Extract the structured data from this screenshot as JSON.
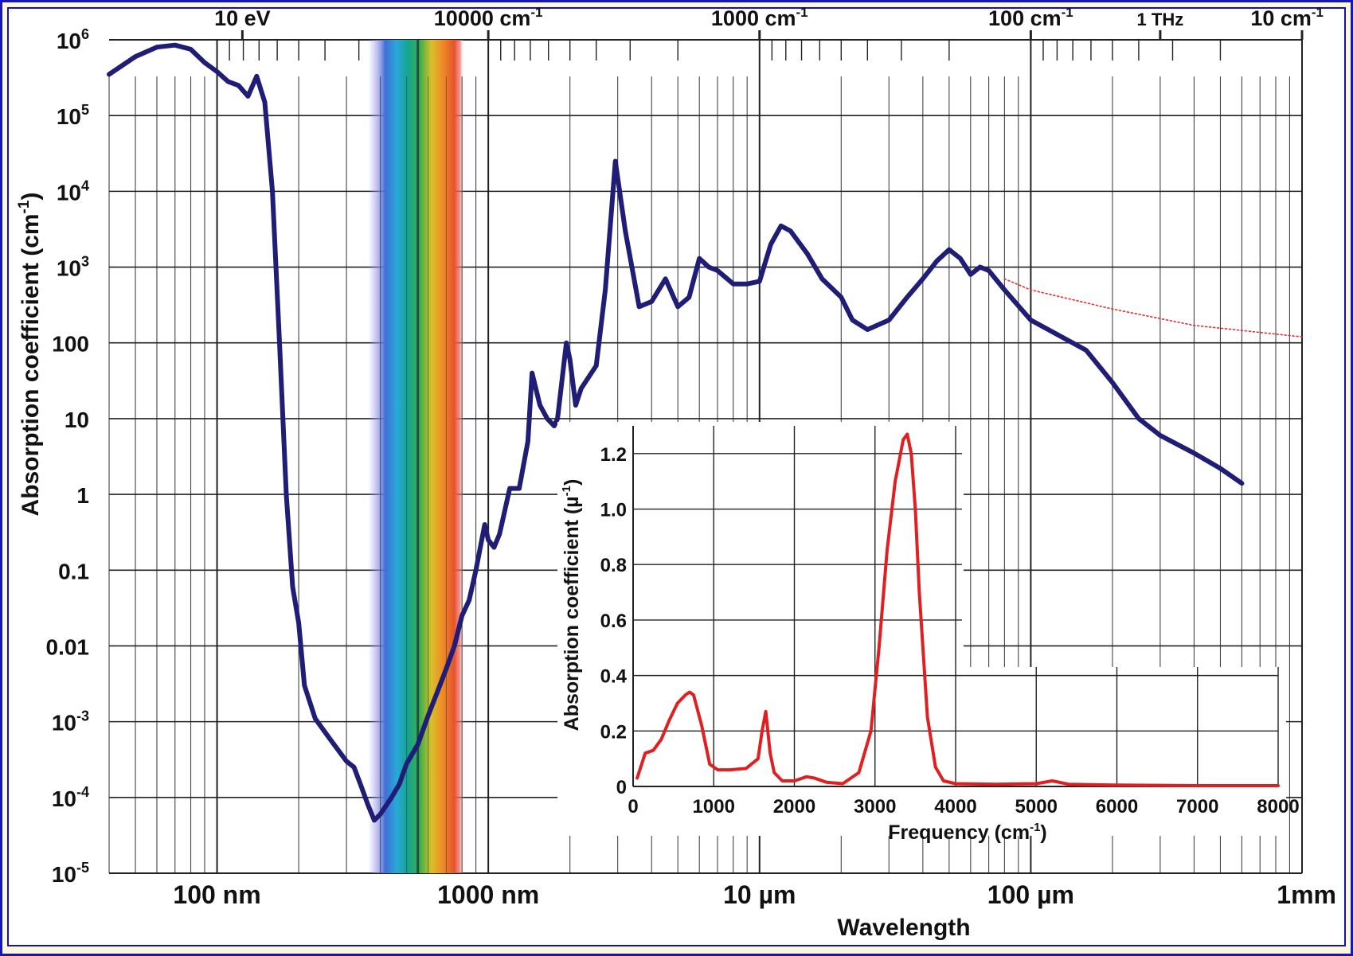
{
  "frame": {
    "border_color": "#1518b4",
    "background": "#fdf8dd"
  },
  "chart_data": [
    {
      "type": "line",
      "scale": "log-log",
      "title": "",
      "xlabel": "Wavelength",
      "ylabel": "Absorption coefficient (cm",
      "ylabel_sup": "-1",
      "ylabel_close": ")",
      "xlim_m": [
        4e-08,
        0.001
      ],
      "ylim": [
        1e-05,
        1000000.0
      ],
      "grid": true,
      "x_tick_labels": [
        {
          "label": "100 nm",
          "value_m": 1e-07
        },
        {
          "label": "1000 nm",
          "value_m": 1e-06
        },
        {
          "label": "10 µm",
          "value_m": 1e-05
        },
        {
          "label": "100 µm",
          "value_m": 0.0001
        },
        {
          "label": "1mm",
          "value_m": 0.001
        }
      ],
      "top_axis_labels": [
        {
          "label": "10 eV",
          "value_m": 1.24e-07
        },
        {
          "label": "10000 cm",
          "sup": "-1",
          "value_m": 1e-06
        },
        {
          "label": "1000 cm",
          "sup": "-1",
          "value_m": 1e-05
        },
        {
          "label": "100 cm",
          "sup": "-1",
          "value_m": 0.0001
        },
        {
          "label": "1 THz",
          "value_m": 0.0003
        },
        {
          "label": "10 cm",
          "sup": "-1",
          "value_m": 0.001
        }
      ],
      "y_tick_labels": [
        {
          "base": "10",
          "sup": "6",
          "value": 1000000.0
        },
        {
          "base": "10",
          "sup": "5",
          "value": 100000.0
        },
        {
          "base": "10",
          "sup": "4",
          "value": 10000.0
        },
        {
          "base": "10",
          "sup": "3",
          "value": 1000.0
        },
        {
          "base": "100",
          "sup": "",
          "value": 100
        },
        {
          "base": "10",
          "sup": "",
          "value": 10
        },
        {
          "base": "1",
          "sup": "",
          "value": 1
        },
        {
          "base": "0.1",
          "sup": "",
          "value": 0.1
        },
        {
          "base": "0.01",
          "sup": "",
          "value": 0.01
        },
        {
          "base": "10",
          "sup": "-3",
          "value": 0.001
        },
        {
          "base": "10",
          "sup": "-4",
          "value": 0.0001
        },
        {
          "base": "10",
          "sup": "-5",
          "value": 1e-05
        }
      ],
      "visible_band_m": [
        3.8e-07,
        7.5e-07
      ],
      "series": [
        {
          "name": "water absorption",
          "color": "#1f1d75",
          "points": [
            [
              4e-08,
              350000.0
            ],
            [
              5e-08,
              600000.0
            ],
            [
              6e-08,
              800000.0
            ],
            [
              7e-08,
              850000.0
            ],
            [
              8e-08,
              750000.0
            ],
            [
              9e-08,
              500000.0
            ],
            [
              1e-07,
              380000.0
            ],
            [
              1.1e-07,
              280000.0
            ],
            [
              1.2e-07,
              250000.0
            ],
            [
              1.3e-07,
              180000.0
            ],
            [
              1.4e-07,
              330000.0
            ],
            [
              1.5e-07,
              150000.0
            ],
            [
              1.6e-07,
              10000.0
            ],
            [
              1.7e-07,
              100
            ],
            [
              1.8e-07,
              1
            ],
            [
              1.9e-07,
              0.06
            ],
            [
              2e-07,
              0.02
            ],
            [
              2.1e-07,
              0.003
            ],
            [
              2.3e-07,
              0.0011
            ],
            [
              2.6e-07,
              0.0006
            ],
            [
              3e-07,
              0.0003
            ],
            [
              3.2e-07,
              0.00025
            ],
            [
              3.4e-07,
              0.00014
            ],
            [
              3.6e-07,
              8e-05
            ],
            [
              3.8e-07,
              5e-05
            ],
            [
              4e-07,
              6e-05
            ],
            [
              4.4e-07,
              0.0001
            ],
            [
              4.7e-07,
              0.00015
            ],
            [
              5e-07,
              0.00028
            ],
            [
              5.5e-07,
              0.0005
            ],
            [
              6e-07,
              0.0012
            ],
            [
              6.5e-07,
              0.0025
            ],
            [
              7e-07,
              0.005
            ],
            [
              7.5e-07,
              0.01
            ],
            [
              8e-07,
              0.025
            ],
            [
              8.5e-07,
              0.04
            ],
            [
              9e-07,
              0.1
            ],
            [
              9.7e-07,
              0.4
            ],
            [
              1e-06,
              0.25
            ],
            [
              1.05e-06,
              0.2
            ],
            [
              1.1e-06,
              0.3
            ],
            [
              1.2e-06,
              1.2
            ],
            [
              1.3e-06,
              1.2
            ],
            [
              1.4e-06,
              5
            ],
            [
              1.45e-06,
              40
            ],
            [
              1.55e-06,
              15
            ],
            [
              1.65e-06,
              10
            ],
            [
              1.75e-06,
              8
            ],
            [
              1.8e-06,
              10
            ],
            [
              1.94e-06,
              100
            ],
            [
              2e-06,
              60
            ],
            [
              2.1e-06,
              15
            ],
            [
              2.2e-06,
              25
            ],
            [
              2.5e-06,
              50
            ],
            [
              2.7e-06,
              500
            ],
            [
              2.94e-06,
              25000.0
            ],
            [
              3.2e-06,
              3000.0
            ],
            [
              3.6e-06,
              300
            ],
            [
              4e-06,
              350
            ],
            [
              4.5e-06,
              700
            ],
            [
              5e-06,
              300
            ],
            [
              5.5e-06,
              400
            ],
            [
              6e-06,
              1300
            ],
            [
              6.5e-06,
              1000
            ],
            [
              7e-06,
              900
            ],
            [
              8e-06,
              600
            ],
            [
              9e-06,
              600
            ],
            [
              1e-05,
              650
            ],
            [
              1.1e-05,
              2000
            ],
            [
              1.2e-05,
              3500
            ],
            [
              1.3e-05,
              3000
            ],
            [
              1.5e-05,
              1500
            ],
            [
              1.7e-05,
              700
            ],
            [
              2e-05,
              400
            ],
            [
              2.2e-05,
              200
            ],
            [
              2.5e-05,
              150
            ],
            [
              3e-05,
              200
            ],
            [
              3.5e-05,
              400
            ],
            [
              4e-05,
              700
            ],
            [
              4.5e-05,
              1200
            ],
            [
              5e-05,
              1700
            ],
            [
              5.5e-05,
              1300
            ],
            [
              6e-05,
              800
            ],
            [
              6.5e-05,
              1000
            ],
            [
              7e-05,
              900
            ],
            [
              8e-05,
              500
            ],
            [
              0.0001,
              200
            ],
            [
              0.00013,
              120
            ],
            [
              0.00016,
              80
            ],
            [
              0.0002,
              30
            ],
            [
              0.00025,
              10
            ],
            [
              0.0003,
              6
            ],
            [
              0.0004,
              3.5
            ],
            [
              0.0005,
              2.2
            ],
            [
              0.0006,
              1.4
            ]
          ]
        },
        {
          "name": "dotted extension",
          "color": "#e0312e",
          "style": "dotted",
          "points": [
            [
              8e-05,
              700
            ],
            [
              0.0001,
              500
            ],
            [
              0.0002,
              280
            ],
            [
              0.0004,
              170
            ],
            [
              0.001,
              120
            ]
          ]
        }
      ]
    },
    {
      "type": "line",
      "title": "",
      "xlabel": "Frequency (cm",
      "xlabel_sup": "-1",
      "xlabel_close": ")",
      "ylabel": "Absorption coefficient (µ",
      "ylabel_sup": "-1",
      "ylabel_close": ")",
      "xlim": [
        0,
        8000
      ],
      "ylim": [
        0,
        1.3
      ],
      "grid": true,
      "x_ticks": [
        0,
        1000,
        2000,
        3000,
        4000,
        5000,
        6000,
        7000,
        8000
      ],
      "x_tick_labels": [
        "0",
        "1000",
        "2000",
        "3000",
        "4000",
        "5000",
        "6000",
        "7000",
        "8000"
      ],
      "y_ticks": [
        0,
        0.2,
        0.4,
        0.6,
        0.8,
        1.0,
        1.2
      ],
      "y_tick_labels": [
        "0",
        "0.2",
        "0.4",
        "0.6",
        "0.8",
        "1.0",
        "1.2"
      ],
      "series": [
        {
          "name": "inset absorption",
          "color": "#e02020",
          "x": [
            50,
            150,
            250,
            350,
            450,
            550,
            650,
            700,
            750,
            850,
            950,
            1050,
            1200,
            1400,
            1550,
            1600,
            1645,
            1700,
            1750,
            1850,
            2000,
            2150,
            2250,
            2400,
            2600,
            2800,
            2950,
            3050,
            3150,
            3250,
            3350,
            3400,
            3450,
            3500,
            3550,
            3650,
            3750,
            3850,
            4000,
            4500,
            5000,
            5200,
            5400,
            6000,
            7000,
            8000
          ],
          "y": [
            0.03,
            0.12,
            0.13,
            0.17,
            0.24,
            0.3,
            0.33,
            0.34,
            0.33,
            0.22,
            0.08,
            0.06,
            0.06,
            0.065,
            0.1,
            0.2,
            0.27,
            0.12,
            0.05,
            0.02,
            0.02,
            0.035,
            0.03,
            0.015,
            0.01,
            0.05,
            0.2,
            0.5,
            0.85,
            1.1,
            1.25,
            1.27,
            1.2,
            1.0,
            0.7,
            0.25,
            0.07,
            0.02,
            0.01,
            0.008,
            0.01,
            0.02,
            0.008,
            0.005,
            0.003,
            0.003
          ]
        }
      ]
    }
  ]
}
